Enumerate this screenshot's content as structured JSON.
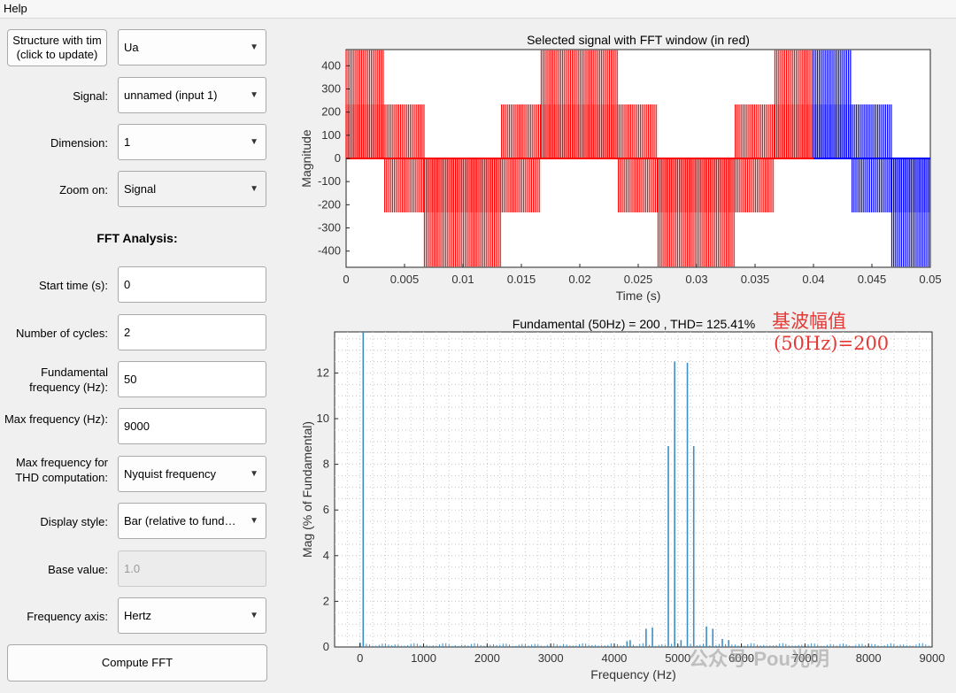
{
  "menu": {
    "help": "Help"
  },
  "panel": {
    "structure_button": "Structure with tim (click to update)",
    "structure_value": "Ua",
    "signal_label": "Signal:",
    "signal_value": "unnamed (input 1)",
    "dimension_label": "Dimension:",
    "dimension_value": "1",
    "zoom_label": "Zoom on:",
    "zoom_value": "Signal",
    "fft_title": "FFT Analysis:",
    "start_time_label": "Start time (s):",
    "start_time_value": "0",
    "cycles_label": "Number of cycles:",
    "cycles_value": "2",
    "fund_freq_label": "Fundamental frequency (Hz):",
    "fund_freq_value": "50",
    "max_freq_label": "Max frequency (Hz):",
    "max_freq_value": "9000",
    "thd_max_label": "Max frequency for THD computation:",
    "thd_max_value": "Nyquist frequency",
    "display_style_label": "Display style:",
    "display_style_value": "Bar (relative to fund…",
    "base_value_label": "Base value:",
    "base_value_value": "1.0",
    "freq_axis_label": "Frequency axis:",
    "freq_axis_value": "Hertz",
    "compute_button": "Compute FFT"
  },
  "annotations": {
    "line1": "基波幅值",
    "line2": "(50Hz)=200"
  },
  "watermark": "公众号·Pou光明",
  "chart_data": [
    {
      "type": "line",
      "title": "Selected signal with FFT window (in red)",
      "xlabel": "Time (s)",
      "ylabel": "Magnitude",
      "xlim": [
        0,
        0.05
      ],
      "ylim": [
        -470,
        470
      ],
      "xticks": [
        "0",
        "0.005",
        "0.01",
        "0.015",
        "0.02",
        "0.025",
        "0.03",
        "0.035",
        "0.04",
        "0.045",
        "0.05"
      ],
      "yticks": [
        "400",
        "300",
        "200",
        "100",
        "0",
        "-100",
        "-200",
        "-300",
        "-400"
      ],
      "window_end": 0.04,
      "series": [
        {
          "color": "#ff0000",
          "x": [
            0,
            0.04
          ]
        },
        {
          "color": "#0000ff",
          "x": [
            0.04,
            0.05
          ]
        }
      ],
      "levels": [
        {
          "t0": 0.0,
          "t1": 0.0033,
          "lo": 0,
          "hi": 467
        },
        {
          "t0": 0.0,
          "t1": 0.0067,
          "lo": 0,
          "hi": 233
        },
        {
          "t0": 0.0033,
          "t1": 0.0067,
          "lo": -233,
          "hi": 0
        },
        {
          "t0": 0.0067,
          "t1": 0.0133,
          "lo": -467,
          "hi": 0
        },
        {
          "t0": 0.0067,
          "t1": 0.0167,
          "lo": -233,
          "hi": 0
        },
        {
          "t0": 0.0133,
          "t1": 0.0167,
          "lo": 0,
          "hi": 233
        },
        {
          "t0": 0.0167,
          "t1": 0.0233,
          "lo": 0,
          "hi": 467
        },
        {
          "t0": 0.0167,
          "t1": 0.0267,
          "lo": 0,
          "hi": 233
        },
        {
          "t0": 0.0233,
          "t1": 0.0267,
          "lo": -233,
          "hi": 0
        },
        {
          "t0": 0.0267,
          "t1": 0.0333,
          "lo": -467,
          "hi": 0
        },
        {
          "t0": 0.0267,
          "t1": 0.0367,
          "lo": -233,
          "hi": 0
        },
        {
          "t0": 0.0333,
          "t1": 0.0367,
          "lo": 0,
          "hi": 233
        },
        {
          "t0": 0.0367,
          "t1": 0.0433,
          "lo": 0,
          "hi": 467
        },
        {
          "t0": 0.0367,
          "t1": 0.0467,
          "lo": 0,
          "hi": 233
        },
        {
          "t0": 0.0433,
          "t1": 0.0467,
          "lo": -233,
          "hi": 0
        },
        {
          "t0": 0.0467,
          "t1": 0.05,
          "lo": -467,
          "hi": 0
        },
        {
          "t0": 0.0467,
          "t1": 0.05,
          "lo": -233,
          "hi": 0
        }
      ]
    },
    {
      "type": "bar",
      "title": "Fundamental (50Hz) = 200 , THD= 125.41%",
      "xlabel": "Frequency (Hz)",
      "ylabel": "Mag (% of Fundamental)",
      "xlim": [
        -400,
        9000
      ],
      "ylim": [
        0,
        13.8
      ],
      "xticks": [
        "0",
        "1000",
        "2000",
        "3000",
        "4000",
        "5000",
        "6000",
        "7000",
        "8000",
        "9000"
      ],
      "yticks": [
        "0",
        "2",
        "4",
        "6",
        "8",
        "10",
        "12"
      ],
      "color": "#3b8fc7",
      "bars": [
        [
          0,
          0.2
        ],
        [
          50,
          13.8
        ],
        [
          4200,
          0.25
        ],
        [
          4250,
          0.3
        ],
        [
          4500,
          0.8
        ],
        [
          4600,
          0.85
        ],
        [
          4850,
          8.8
        ],
        [
          4950,
          12.5
        ],
        [
          5050,
          0.3
        ],
        [
          5150,
          12.45
        ],
        [
          5250,
          8.8
        ],
        [
          5450,
          0.9
        ],
        [
          5550,
          0.8
        ],
        [
          5700,
          0.35
        ],
        [
          5800,
          0.3
        ]
      ]
    }
  ]
}
